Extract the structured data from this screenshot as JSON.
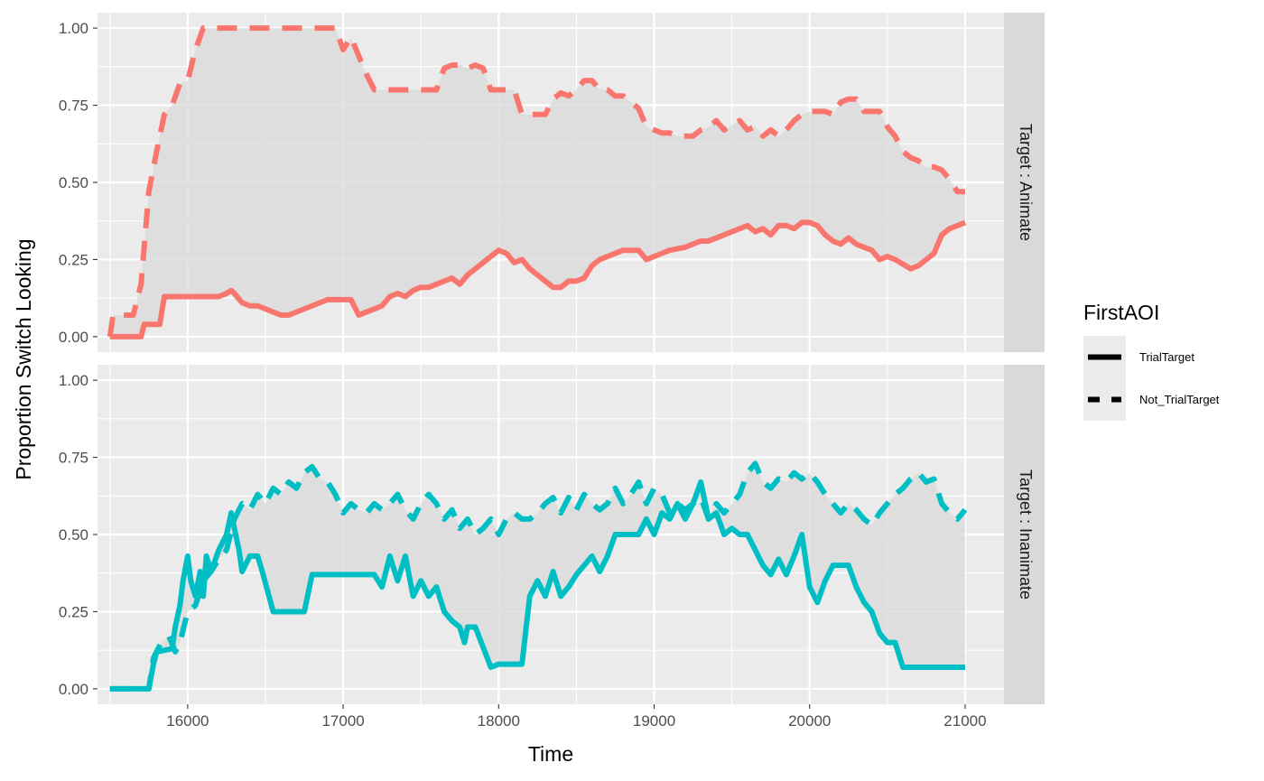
{
  "chart_data": {
    "type": "line",
    "xlabel": "Time",
    "ylabel": "Proportion Switch Looking",
    "xlim": [
      15420,
      21250
    ],
    "ylim": [
      -0.05,
      1.05
    ],
    "x_ticks": [
      16000,
      17000,
      18000,
      19000,
      20000,
      21000
    ],
    "x_tick_labels": [
      "16000",
      "17000",
      "18000",
      "19000",
      "20000",
      "21000"
    ],
    "y_ticks": [
      0,
      0.25,
      0.5,
      0.75,
      1
    ],
    "y_tick_labels": [
      "0.00",
      "0.25",
      "0.50",
      "0.75",
      "1.00"
    ],
    "grid": true,
    "legend": {
      "title": "FirstAOI",
      "position": "right",
      "entries": [
        {
          "label": "TrialTarget",
          "linetype": "solid"
        },
        {
          "label": "Not_TrialTarget",
          "linetype": "dashed"
        }
      ]
    },
    "panels": [
      {
        "strip": "Target : Animate",
        "color": "#F8766D",
        "series": [
          {
            "name": "TrialTarget",
            "linetype": "solid",
            "x": [
              15500,
              15520,
              15700,
              15720,
              15820,
              15850,
              16000,
              16050,
              16100,
              16150,
              16200,
              16250,
              16280,
              16300,
              16350,
              16400,
              16450,
              16600,
              16650,
              16900,
              16950,
              17050,
              17100,
              17150,
              17250,
              17300,
              17350,
              17400,
              17450,
              17500,
              17550,
              17600,
              17650,
              17700,
              17750,
              17800,
              17850,
              17900,
              17950,
              18000,
              18050,
              18100,
              18150,
              18200,
              18250,
              18300,
              18350,
              18400,
              18450,
              18500,
              18550,
              18600,
              18650,
              18700,
              18750,
              18800,
              18900,
              18950,
              19000,
              19050,
              19100,
              19200,
              19250,
              19300,
              19350,
              19400,
              19450,
              19500,
              19550,
              19600,
              19650,
              19700,
              19750,
              19800,
              19850,
              19900,
              19950,
              20000,
              20050,
              20100,
              20150,
              20200,
              20250,
              20300,
              20350,
              20400,
              20450,
              20500,
              20550,
              20650,
              20700,
              20750,
              20800,
              20850,
              20900,
              20950,
              21000
            ],
            "y": [
              0.0,
              0.0,
              0.0,
              0.04,
              0.04,
              0.13,
              0.13,
              0.13,
              0.13,
              0.13,
              0.13,
              0.14,
              0.15,
              0.14,
              0.11,
              0.1,
              0.1,
              0.07,
              0.07,
              0.12,
              0.12,
              0.12,
              0.07,
              0.08,
              0.1,
              0.13,
              0.14,
              0.13,
              0.15,
              0.16,
              0.16,
              0.17,
              0.18,
              0.19,
              0.17,
              0.2,
              0.22,
              0.24,
              0.26,
              0.28,
              0.27,
              0.24,
              0.25,
              0.22,
              0.2,
              0.18,
              0.16,
              0.16,
              0.18,
              0.18,
              0.19,
              0.23,
              0.25,
              0.26,
              0.27,
              0.28,
              0.28,
              0.25,
              0.26,
              0.27,
              0.28,
              0.29,
              0.3,
              0.31,
              0.31,
              0.32,
              0.33,
              0.34,
              0.35,
              0.36,
              0.34,
              0.35,
              0.33,
              0.36,
              0.36,
              0.35,
              0.37,
              0.37,
              0.36,
              0.33,
              0.31,
              0.3,
              0.32,
              0.3,
              0.29,
              0.28,
              0.25,
              0.26,
              0.25,
              0.22,
              0.23,
              0.25,
              0.27,
              0.33,
              0.35,
              0.36,
              0.37
            ]
          },
          {
            "name": "Not_TrialTarget",
            "linetype": "dashed",
            "x": [
              15500,
              15520,
              15600,
              15650,
              15700,
              15750,
              15800,
              15850,
              15900,
              15950,
              16000,
              16050,
              16100,
              16950,
              17000,
              17050,
              17150,
              17200,
              17550,
              17600,
              17650,
              17700,
              17750,
              17800,
              17850,
              17900,
              17950,
              18050,
              18100,
              18150,
              18300,
              18350,
              18400,
              18450,
              18500,
              18550,
              18600,
              18650,
              18700,
              18750,
              18800,
              18850,
              18900,
              18950,
              19050,
              19100,
              19150,
              19250,
              19300,
              19350,
              19400,
              19450,
              19550,
              19600,
              19650,
              19700,
              19750,
              19800,
              19850,
              19900,
              19950,
              20000,
              20100,
              20150,
              20200,
              20250,
              20300,
              20350,
              20400,
              20450,
              20500,
              20550,
              20600,
              20650,
              20700,
              20750,
              20800,
              20850,
              20900,
              20950,
              21000
            ],
            "y": [
              0.0,
              0.07,
              0.07,
              0.07,
              0.17,
              0.47,
              0.6,
              0.72,
              0.75,
              0.82,
              0.83,
              0.93,
              1.0,
              1.0,
              0.93,
              0.97,
              0.85,
              0.8,
              0.8,
              0.8,
              0.87,
              0.88,
              0.88,
              0.87,
              0.88,
              0.87,
              0.8,
              0.8,
              0.8,
              0.72,
              0.72,
              0.77,
              0.79,
              0.78,
              0.8,
              0.83,
              0.83,
              0.8,
              0.8,
              0.78,
              0.78,
              0.76,
              0.74,
              0.68,
              0.66,
              0.66,
              0.65,
              0.65,
              0.67,
              0.68,
              0.7,
              0.67,
              0.7,
              0.67,
              0.68,
              0.65,
              0.67,
              0.65,
              0.67,
              0.7,
              0.72,
              0.73,
              0.73,
              0.72,
              0.76,
              0.77,
              0.77,
              0.73,
              0.73,
              0.73,
              0.68,
              0.65,
              0.6,
              0.58,
              0.57,
              0.55,
              0.55,
              0.54,
              0.51,
              0.47,
              0.47
            ]
          }
        ]
      },
      {
        "strip": "Target : Inanimate",
        "color": "#00BFC4",
        "series": [
          {
            "name": "TrialTarget",
            "linetype": "solid",
            "x": [
              15500,
              15600,
              15750,
              15780,
              15800,
              15900,
              15920,
              15950,
              15970,
              16000,
              16020,
              16050,
              16080,
              16100,
              16120,
              16150,
              16200,
              16250,
              16280,
              16300,
              16330,
              16350,
              16400,
              16450,
              16480,
              16550,
              16600,
              16750,
              16800,
              17150,
              17200,
              17250,
              17300,
              17350,
              17400,
              17450,
              17500,
              17550,
              17600,
              17650,
              17700,
              17750,
              17780,
              17800,
              17850,
              17950,
              18000,
              18150,
              18200,
              18250,
              18300,
              18350,
              18400,
              18450,
              18500,
              18550,
              18600,
              18650,
              18700,
              18750,
              18900,
              18950,
              19000,
              19050,
              19100,
              19150,
              19200,
              19250,
              19300,
              19350,
              19400,
              19450,
              19500,
              19550,
              19600,
              19650,
              19700,
              19750,
              19800,
              19850,
              19900,
              19950,
              20000,
              20050,
              20100,
              20150,
              20250,
              20300,
              20350,
              20400,
              20450,
              20500,
              20550,
              20600,
              21000
            ],
            "y": [
              0.0,
              0.0,
              0.0,
              0.08,
              0.12,
              0.13,
              0.2,
              0.27,
              0.35,
              0.43,
              0.35,
              0.3,
              0.38,
              0.3,
              0.43,
              0.38,
              0.45,
              0.5,
              0.57,
              0.52,
              0.45,
              0.38,
              0.43,
              0.43,
              0.38,
              0.25,
              0.25,
              0.25,
              0.37,
              0.37,
              0.37,
              0.33,
              0.43,
              0.35,
              0.43,
              0.3,
              0.35,
              0.3,
              0.33,
              0.25,
              0.22,
              0.2,
              0.15,
              0.2,
              0.2,
              0.07,
              0.08,
              0.08,
              0.3,
              0.35,
              0.3,
              0.38,
              0.3,
              0.33,
              0.37,
              0.4,
              0.43,
              0.38,
              0.43,
              0.5,
              0.5,
              0.55,
              0.5,
              0.57,
              0.55,
              0.6,
              0.55,
              0.6,
              0.67,
              0.55,
              0.57,
              0.5,
              0.52,
              0.5,
              0.5,
              0.45,
              0.4,
              0.37,
              0.42,
              0.37,
              0.43,
              0.5,
              0.33,
              0.28,
              0.35,
              0.4,
              0.4,
              0.33,
              0.28,
              0.25,
              0.18,
              0.15,
              0.15,
              0.07,
              0.07
            ]
          },
          {
            "name": "Not_TrialTarget",
            "linetype": "dashed",
            "x": [
              15500,
              15600,
              15750,
              15780,
              15830,
              15880,
              15920,
              15950,
              16000,
              16050,
              16100,
              16150,
              16200,
              16250,
              16300,
              16350,
              16400,
              16450,
              16500,
              16550,
              16600,
              16650,
              16700,
              16750,
              16800,
              16850,
              16900,
              16950,
              17000,
              17050,
              17100,
              17150,
              17200,
              17250,
              17300,
              17350,
              17400,
              17450,
              17500,
              17550,
              17600,
              17650,
              17700,
              17750,
              17800,
              17850,
              17900,
              17950,
              18000,
              18050,
              18100,
              18150,
              18200,
              18250,
              18300,
              18350,
              18400,
              18450,
              18500,
              18550,
              18600,
              18650,
              18700,
              18750,
              18800,
              18850,
              18900,
              18950,
              19000,
              19050,
              19100,
              19150,
              19200,
              19250,
              19300,
              19350,
              19400,
              19450,
              19500,
              19550,
              19600,
              19650,
              19700,
              19750,
              19800,
              19850,
              19900,
              19950,
              20000,
              20050,
              20100,
              20150,
              20200,
              20250,
              20300,
              20350,
              20400,
              20450,
              20500,
              20550,
              20600,
              20650,
              20700,
              20750,
              20800,
              20850,
              20900,
              20950,
              21000
            ],
            "y": [
              0.0,
              0.0,
              0.0,
              0.1,
              0.15,
              0.17,
              0.12,
              0.15,
              0.25,
              0.27,
              0.35,
              0.38,
              0.42,
              0.45,
              0.55,
              0.6,
              0.58,
              0.63,
              0.6,
              0.65,
              0.63,
              0.67,
              0.65,
              0.7,
              0.72,
              0.68,
              0.67,
              0.63,
              0.57,
              0.6,
              0.58,
              0.57,
              0.6,
              0.58,
              0.6,
              0.63,
              0.58,
              0.55,
              0.6,
              0.63,
              0.6,
              0.55,
              0.58,
              0.52,
              0.55,
              0.5,
              0.52,
              0.55,
              0.5,
              0.55,
              0.57,
              0.55,
              0.55,
              0.57,
              0.6,
              0.62,
              0.57,
              0.62,
              0.58,
              0.63,
              0.6,
              0.58,
              0.6,
              0.65,
              0.6,
              0.63,
              0.67,
              0.6,
              0.65,
              0.63,
              0.57,
              0.6,
              0.58,
              0.6,
              0.62,
              0.55,
              0.6,
              0.57,
              0.6,
              0.63,
              0.7,
              0.73,
              0.67,
              0.65,
              0.68,
              0.67,
              0.7,
              0.68,
              0.7,
              0.67,
              0.63,
              0.6,
              0.57,
              0.6,
              0.58,
              0.55,
              0.53,
              0.57,
              0.6,
              0.63,
              0.65,
              0.68,
              0.7,
              0.67,
              0.68,
              0.6,
              0.57,
              0.55,
              0.58
            ]
          }
        ]
      }
    ]
  }
}
